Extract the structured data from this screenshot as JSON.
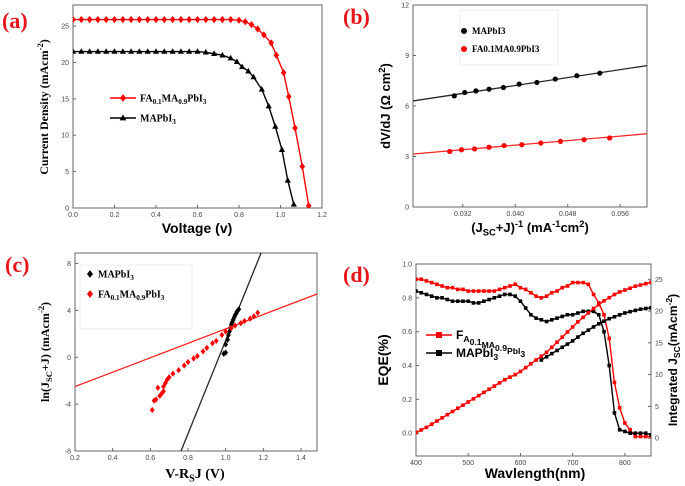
{
  "colors": {
    "fa": "#ff0000",
    "ma": "#000000",
    "panel_label": "#e8141a"
  },
  "chart_data": [
    {
      "id": "a",
      "panel_label": "(a)",
      "type": "line",
      "xlabel": [
        [
          "Voltage (v)",
          0
        ]
      ],
      "ylabel": [
        [
          "Current Density (mAcm",
          0
        ],
        [
          "-2",
          2
        ],
        [
          ")",
          0
        ]
      ],
      "xlim": [
        0,
        1.2
      ],
      "ylim": [
        0,
        27.9
      ],
      "xticks": [
        0.0,
        0.2,
        0.4,
        0.6,
        0.8,
        1.0,
        1.2
      ],
      "xtick_labels": [
        "0.0",
        "0.2",
        "0.4",
        "0.6",
        "0.8",
        "1.0",
        "1.2"
      ],
      "yticks": [
        0,
        5,
        10,
        15,
        20,
        25
      ],
      "ytick_labels": [
        "0",
        "5",
        "10",
        "15",
        "20",
        "25"
      ],
      "legend_placement": "center-left",
      "series": [
        {
          "name": [
            [
              "FA",
              0
            ],
            [
              "0.1",
              1
            ],
            [
              "MA",
              0
            ],
            [
              "0.9",
              1
            ],
            [
              "PbI",
              0
            ],
            [
              "3",
              1
            ]
          ],
          "color": "#ff0000",
          "marker": "diamond",
          "line": true,
          "x": [
            0,
            0.04,
            0.08,
            0.12,
            0.16,
            0.2,
            0.24,
            0.28,
            0.32,
            0.36,
            0.4,
            0.44,
            0.48,
            0.52,
            0.56,
            0.6,
            0.64,
            0.68,
            0.72,
            0.76,
            0.8,
            0.83,
            0.86,
            0.89,
            0.92,
            0.955,
            0.98,
            1.015,
            1.04,
            1.07,
            1.105,
            1.136
          ],
          "y": [
            25.9,
            25.9,
            25.9,
            25.9,
            25.9,
            25.9,
            25.9,
            25.9,
            25.9,
            25.9,
            25.9,
            25.9,
            25.9,
            25.9,
            25.9,
            25.9,
            25.9,
            25.9,
            25.9,
            25.9,
            25.8,
            25.6,
            25.2,
            24.6,
            23.8,
            22.7,
            21,
            18.6,
            15.3,
            11,
            5.7,
            0.3
          ]
        },
        {
          "name": [
            [
              "MAPbI",
              0
            ],
            [
              "3",
              1
            ]
          ],
          "color": "#000000",
          "marker": "triangle",
          "line": true,
          "x": [
            0,
            0.04,
            0.08,
            0.12,
            0.16,
            0.2,
            0.24,
            0.28,
            0.32,
            0.36,
            0.4,
            0.44,
            0.48,
            0.52,
            0.56,
            0.6,
            0.64,
            0.68,
            0.72,
            0.76,
            0.79,
            0.815,
            0.845,
            0.87,
            0.91,
            0.943,
            0.975,
            1.007,
            1.035,
            1.064
          ],
          "y": [
            21.5,
            21.5,
            21.5,
            21.5,
            21.5,
            21.5,
            21.5,
            21.5,
            21.5,
            21.5,
            21.5,
            21.5,
            21.5,
            21.5,
            21.5,
            21.5,
            21.4,
            21.2,
            21.0,
            20.6,
            20.1,
            19.4,
            18.8,
            18,
            16.3,
            14,
            11.2,
            8,
            3.8,
            0.5
          ]
        }
      ]
    },
    {
      "id": "b",
      "panel_label": "(b)",
      "type": "scatter",
      "xlabel": [
        [
          "(J",
          0
        ],
        [
          "SC",
          1
        ],
        [
          "+J)",
          0
        ],
        [
          "-1",
          2
        ],
        [
          " (mA",
          0
        ],
        [
          "-1",
          2
        ],
        [
          "cm",
          0
        ],
        [
          "2",
          2
        ],
        [
          ")",
          0
        ]
      ],
      "ylabel": [
        [
          "dV/dJ (Ω cm",
          0
        ],
        [
          "2",
          2
        ],
        [
          ")",
          0
        ]
      ],
      "xlim": [
        0.0244,
        0.0601
      ],
      "ylim": [
        0,
        12
      ],
      "xticks": [
        0.032,
        0.04,
        0.048,
        0.056
      ],
      "xtick_labels": [
        "0.032",
        "0.040",
        "0.048",
        "0.056"
      ],
      "yticks": [
        0,
        3,
        6,
        9,
        12
      ],
      "ytick_labels": [
        "0",
        "3",
        "6",
        "9",
        "12"
      ],
      "legend_placement": "top-center",
      "series": [
        {
          "name": [
            [
              "MAPbI3",
              0
            ]
          ],
          "color": "#000000",
          "marker": "circle",
          "x": [
            0.0307,
            0.0323,
            0.034,
            0.036,
            0.0382,
            0.0406,
            0.0433,
            0.0461,
            0.0494,
            0.0529
          ],
          "y": [
            6.6,
            6.8,
            6.9,
            7.0,
            7.1,
            7.3,
            7.4,
            7.6,
            7.8,
            7.95
          ],
          "fit": {
            "x": [
              0.0244,
              0.0601
            ],
            "y": [
              6.3,
              8.4
            ]
          }
        },
        {
          "name": [
            [
              "FA0.1MA0.9PbI3",
              0
            ]
          ],
          "color": "#ff0000",
          "marker": "circle",
          "x": [
            0.03,
            0.0318,
            0.0338,
            0.036,
            0.0383,
            0.041,
            0.0439,
            0.0469,
            0.0505,
            0.0544
          ],
          "y": [
            3.3,
            3.4,
            3.45,
            3.55,
            3.65,
            3.7,
            3.8,
            3.9,
            4.0,
            4.1
          ],
          "fit": {
            "x": [
              0.0244,
              0.0601
            ],
            "y": [
              3.15,
              4.35
            ]
          }
        }
      ]
    },
    {
      "id": "c",
      "panel_label": "(c)",
      "type": "scatter",
      "xlabel": [
        [
          "V-R",
          0
        ],
        [
          "S",
          1
        ],
        [
          "J (V)",
          0
        ]
      ],
      "ylabel": [
        [
          "ln(J",
          0
        ],
        [
          "SC",
          1
        ],
        [
          "+J) (mAcm",
          0
        ],
        [
          "-2",
          2
        ],
        [
          ")",
          0
        ]
      ],
      "xlim": [
        0.2,
        1.485
      ],
      "ylim": [
        -8,
        8.9
      ],
      "xticks": [
        0.2,
        0.4,
        0.6,
        0.8,
        1.0,
        1.2,
        1.4
      ],
      "xtick_labels": [
        "0.2",
        "0.4",
        "0.6",
        "0.8",
        "1.0",
        "1.2",
        "1.4"
      ],
      "yticks": [
        -8,
        -4,
        0,
        4,
        8
      ],
      "ytick_labels": [
        "-8",
        "-4",
        "0",
        "4",
        "8"
      ],
      "legend_placement": "top-left",
      "series": [
        {
          "name": [
            [
              "MAPbI",
              0
            ],
            [
              "3",
              1
            ]
          ],
          "color": "#000000",
          "marker": "diamond",
          "x": [
            0.99,
            1.0,
            1.0,
            1.01,
            1.015,
            1.02,
            1.025,
            1.03,
            1.035,
            1.04,
            1.045,
            1.05,
            1.055,
            1.06,
            1.065,
            1.07
          ],
          "y": [
            0.3,
            0.4,
            1.1,
            1.5,
            1.9,
            2.2,
            2.5,
            2.8,
            3.0,
            3.2,
            3.4,
            3.6,
            3.7,
            3.9,
            4.0,
            4.1
          ],
          "fit": {
            "x": [
              0.763,
              1.188
            ],
            "y": [
              -8,
              8.9
            ]
          }
        },
        {
          "name": [
            [
              "FA",
              0
            ],
            [
              "0.1",
              1
            ],
            [
              "MA",
              0
            ],
            [
              "0.9",
              1
            ],
            [
              "PbI",
              0
            ],
            [
              "3",
              1
            ]
          ],
          "color": "#ff0000",
          "marker": "diamond",
          "x": [
            0.61,
            0.62,
            0.63,
            0.64,
            0.65,
            0.66,
            0.67,
            0.67,
            0.68,
            0.69,
            0.7,
            0.72,
            0.75,
            0.78,
            0.8,
            0.83,
            0.85,
            0.88,
            0.9,
            0.93,
            0.95,
            0.98,
            1.0,
            1.03,
            1.05,
            1.08,
            1.1,
            1.13,
            1.15,
            1.17
          ],
          "y": [
            -4.5,
            -3.7,
            -3.6,
            -2.6,
            -3.3,
            -3.1,
            -2.9,
            -2.5,
            -2.2,
            -1.9,
            -1.7,
            -1.4,
            -1.1,
            -0.7,
            -0.4,
            -0.1,
            0.1,
            0.5,
            0.8,
            1.2,
            1.4,
            1.9,
            2.2,
            2.5,
            2.7,
            2.9,
            3.1,
            3.3,
            3.5,
            3.8
          ],
          "fit": {
            "x": [
              0.2,
              1.485
            ],
            "y": [
              -2.5,
              5.4
            ]
          }
        }
      ]
    },
    {
      "id": "d",
      "panel_label": "(d)",
      "type": "line",
      "xlabel": [
        [
          "Wavlength(nm)",
          0
        ]
      ],
      "ylabel": [
        [
          "EQE(%)",
          0
        ]
      ],
      "ylabel_right": [
        [
          "Integrated J",
          0
        ],
        [
          "SC",
          1
        ],
        [
          "(mAcm",
          0
        ],
        [
          "-2",
          2
        ],
        [
          ")",
          0
        ]
      ],
      "xlim": [
        400,
        850
      ],
      "ylim": [
        -0.135,
        1.0
      ],
      "ylim_right": [
        -2.8,
        27.4
      ],
      "xticks": [
        400,
        500,
        600,
        700,
        800
      ],
      "xtick_labels": [
        "400",
        "500",
        "600",
        "700",
        "800"
      ],
      "yticks": [
        0.0,
        0.2,
        0.4,
        0.6,
        0.8,
        1.0
      ],
      "ytick_labels": [
        "0.0",
        "0.2",
        "0.4",
        "0.6",
        "0.8",
        "1.0"
      ],
      "yticks_right": [
        0,
        5,
        10,
        15,
        20,
        25
      ],
      "ytick_labels_right": [
        "0",
        "5",
        "10",
        "15",
        "20",
        "25"
      ],
      "legend_placement": "center-left",
      "series": [
        {
          "name": [
            [
              "F",
              0
            ],
            [
              "A",
              1
            ],
            [
              "0.1",
              1
            ],
            [
              "MA",
              1
            ],
            [
              "0.9",
              1
            ],
            [
              "PbI",
              1
            ],
            [
              "3",
              1
            ]
          ],
          "color": "#ff0000",
          "marker": "square",
          "line": true,
          "axis": "left",
          "x": [
            400,
            410,
            420,
            430,
            440,
            450,
            460,
            470,
            480,
            490,
            500,
            510,
            520,
            530,
            540,
            550,
            560,
            570,
            580,
            590,
            600,
            610,
            620,
            630,
            640,
            650,
            660,
            670,
            680,
            690,
            700,
            710,
            720,
            730,
            740,
            750,
            760,
            770,
            780,
            790,
            800,
            810,
            820,
            830,
            840,
            850
          ],
          "y": [
            0.91,
            0.91,
            0.9,
            0.89,
            0.88,
            0.87,
            0.86,
            0.86,
            0.85,
            0.85,
            0.84,
            0.84,
            0.84,
            0.84,
            0.84,
            0.84,
            0.85,
            0.86,
            0.87,
            0.88,
            0.86,
            0.85,
            0.83,
            0.81,
            0.8,
            0.81,
            0.83,
            0.84,
            0.86,
            0.87,
            0.89,
            0.89,
            0.89,
            0.88,
            0.82,
            0.77,
            0.7,
            0.56,
            0.3,
            0.15,
            0.06,
            0.02,
            -0.02,
            -0.02,
            -0.02,
            -0.02
          ]
        },
        {
          "name": [
            [
              "MAPbI",
              0
            ],
            [
              "3",
              1
            ]
          ],
          "color": "#000000",
          "marker": "square",
          "line": true,
          "axis": "left",
          "x": [
            400,
            410,
            420,
            430,
            440,
            450,
            460,
            470,
            480,
            490,
            500,
            510,
            520,
            530,
            540,
            550,
            560,
            570,
            580,
            590,
            600,
            610,
            620,
            630,
            640,
            650,
            660,
            670,
            680,
            690,
            700,
            710,
            720,
            730,
            740,
            750,
            760,
            770,
            780,
            790,
            800,
            810,
            820,
            830,
            840,
            850
          ],
          "y": [
            0.84,
            0.83,
            0.82,
            0.81,
            0.8,
            0.8,
            0.79,
            0.78,
            0.78,
            0.78,
            0.78,
            0.77,
            0.77,
            0.78,
            0.79,
            0.8,
            0.81,
            0.82,
            0.82,
            0.81,
            0.78,
            0.74,
            0.7,
            0.68,
            0.67,
            0.66,
            0.67,
            0.68,
            0.69,
            0.7,
            0.7,
            0.71,
            0.72,
            0.72,
            0.72,
            0.7,
            0.6,
            0.4,
            0.12,
            0.02,
            0.01,
            0.0,
            0.0,
            0.0,
            0.0,
            -0.01
          ]
        },
        {
          "color": "#ff0000",
          "marker": "square",
          "line": true,
          "axis": "right",
          "x": [
            400,
            410,
            420,
            430,
            440,
            450,
            460,
            470,
            480,
            490,
            500,
            510,
            520,
            530,
            540,
            550,
            560,
            570,
            580,
            590,
            600,
            610,
            620,
            630,
            640,
            650,
            660,
            670,
            680,
            690,
            700,
            710,
            720,
            730,
            740,
            750,
            760,
            770,
            780,
            790,
            800,
            810,
            820,
            830,
            840,
            850
          ],
          "y": [
            0.9,
            1.3,
            1.7,
            2.2,
            2.7,
            3.2,
            3.7,
            4.2,
            4.7,
            5.2,
            5.7,
            6.2,
            6.7,
            7.2,
            7.7,
            8.2,
            8.7,
            9.2,
            9.6,
            10.0,
            10.5,
            11.1,
            11.7,
            12.3,
            12.9,
            13.5,
            14.3,
            15.1,
            15.9,
            16.7,
            17.5,
            18.3,
            19.0,
            19.7,
            20.4,
            21.0,
            21.6,
            22.1,
            22.6,
            23.0,
            23.3,
            23.6,
            23.9,
            24.1,
            24.3,
            24.5
          ]
        },
        {
          "color": "#000000",
          "marker": "square",
          "line": true,
          "axis": "right",
          "x": [
            640,
            650,
            660,
            670,
            680,
            690,
            700,
            710,
            720,
            730,
            740,
            750,
            760,
            770,
            780,
            790,
            800,
            810,
            820,
            830,
            840,
            850
          ],
          "y": [
            12.3,
            12.8,
            13.3,
            13.8,
            14.3,
            14.8,
            15.3,
            15.9,
            16.5,
            17.0,
            17.5,
            18.0,
            18.4,
            18.8,
            19.1,
            19.4,
            19.7,
            19.9,
            20.1,
            20.3,
            20.4,
            20.5
          ]
        }
      ]
    }
  ]
}
